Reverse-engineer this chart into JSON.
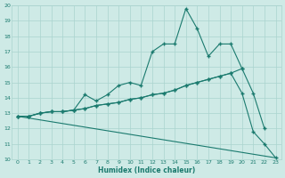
{
  "xlabel": "Humidex (Indice chaleur)",
  "bg_color": "#ceeae6",
  "grid_color": "#aad4ce",
  "line_color": "#1a7a6e",
  "xlim": [
    -0.5,
    23.5
  ],
  "ylim": [
    10,
    20
  ],
  "yticks": [
    10,
    11,
    12,
    13,
    14,
    15,
    16,
    17,
    18,
    19,
    20
  ],
  "xticks": [
    0,
    1,
    2,
    3,
    4,
    5,
    6,
    7,
    8,
    9,
    10,
    11,
    12,
    13,
    14,
    15,
    16,
    17,
    18,
    19,
    20,
    21,
    22,
    23
  ],
  "line1_x": [
    0,
    1,
    2,
    3,
    4,
    5,
    6,
    7,
    8,
    9,
    10,
    11,
    12,
    13,
    14,
    15,
    16,
    17,
    18,
    19,
    20
  ],
  "line1_y": [
    12.8,
    12.8,
    13.0,
    13.1,
    13.1,
    13.2,
    14.2,
    13.8,
    14.2,
    14.8,
    15.0,
    14.8,
    17.0,
    17.5,
    17.5,
    19.8,
    18.5,
    16.7,
    17.5,
    17.5,
    15.9
  ],
  "line2_x": [
    0,
    1,
    2,
    3,
    4,
    5,
    6,
    7,
    8,
    9,
    10,
    11,
    12,
    13,
    14,
    15,
    16,
    17,
    18,
    19,
    20,
    21,
    22
  ],
  "line2_y": [
    12.8,
    12.8,
    13.0,
    13.1,
    13.1,
    13.2,
    13.3,
    13.5,
    13.6,
    13.7,
    13.9,
    14.0,
    14.2,
    14.3,
    14.5,
    14.8,
    15.0,
    15.2,
    15.4,
    15.6,
    15.9,
    14.3,
    12.0
  ],
  "line3_x": [
    0,
    1,
    2,
    3,
    4,
    5,
    6,
    7,
    8,
    9,
    10,
    11,
    12,
    13,
    14,
    15,
    16,
    17,
    18,
    19,
    20,
    21,
    22,
    23
  ],
  "line3_y": [
    12.8,
    12.8,
    13.0,
    13.1,
    13.1,
    13.2,
    13.3,
    13.5,
    13.6,
    13.7,
    13.9,
    14.0,
    14.2,
    14.3,
    14.5,
    14.8,
    15.0,
    15.2,
    15.4,
    15.6,
    14.3,
    11.8,
    11.0,
    10.1
  ],
  "line4_x": [
    0,
    23
  ],
  "line4_y": [
    12.8,
    10.1
  ],
  "marker": "+",
  "markersize": 3,
  "linewidth": 0.8
}
